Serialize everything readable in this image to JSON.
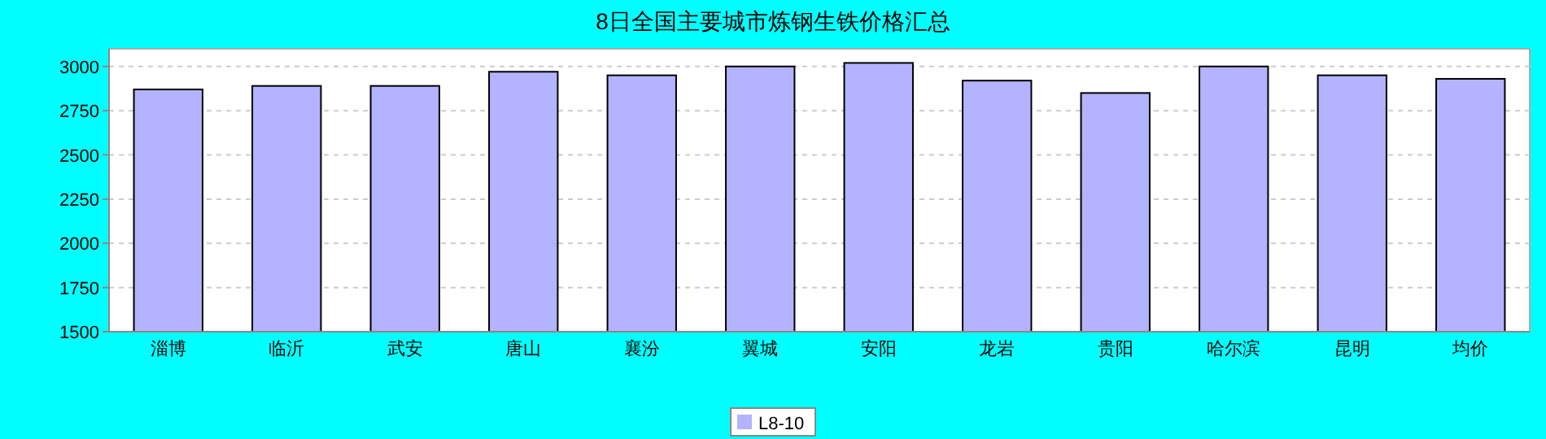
{
  "chart_data": {
    "type": "bar",
    "title": "8日全国主要城市炼钢生铁价格汇总",
    "categories": [
      "淄博",
      "临沂",
      "武安",
      "唐山",
      "襄汾",
      "翼城",
      "安阳",
      "龙岩",
      "贵阳",
      "哈尔滨",
      "昆明",
      "均价"
    ],
    "series": [
      {
        "name": "L8-10",
        "color": "#b3b3ff",
        "values": [
          2870,
          2890,
          2890,
          2970,
          2950,
          3000,
          3020,
          2920,
          2850,
          3000,
          2950,
          2930
        ]
      }
    ],
    "ylim": [
      1500,
      3100
    ],
    "yticks": [
      1500,
      1750,
      2000,
      2250,
      2500,
      2750,
      3000
    ],
    "grid": "y",
    "legend": "bottom"
  }
}
